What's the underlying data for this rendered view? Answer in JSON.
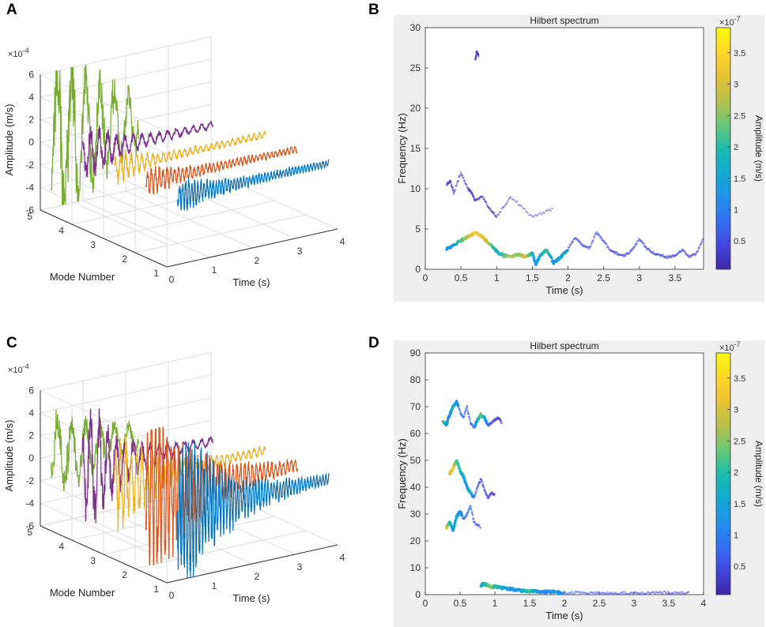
{
  "panels": [
    {
      "letter": "A",
      "kind": "modes"
    },
    {
      "letter": "B",
      "kind": "hilbert"
    },
    {
      "letter": "C",
      "kind": "modes"
    },
    {
      "letter": "D",
      "kind": "hilbert"
    }
  ],
  "chart_data": [
    {
      "type": "line",
      "panel": "A",
      "title": "",
      "xlabel": "Time (s)",
      "ylabel": "Mode Number",
      "zlabel": "Amplitude (m/s)",
      "z_exponent": "×10^-4",
      "x_ticks": [
        0,
        1,
        2,
        3,
        4
      ],
      "y_ticks": [
        1,
        2,
        3,
        4,
        5
      ],
      "z_ticks": [
        -6,
        -4,
        -2,
        0,
        2,
        4,
        6
      ],
      "xlim": [
        0,
        4
      ],
      "ylim": [
        1,
        5
      ],
      "zlim": [
        -6,
        6
      ],
      "series": [
        {
          "name": "Mode 1",
          "mode": 1,
          "color": "#0072BD",
          "peak_amplitude": 0.8,
          "decay": 1.2
        },
        {
          "name": "Mode 2",
          "mode": 2,
          "color": "#D95319",
          "peak_amplitude": 0.7,
          "decay": 1.5
        },
        {
          "name": "Mode 3",
          "mode": 3,
          "color": "#EDB120",
          "peak_amplitude": 0.9,
          "decay": 2.0
        },
        {
          "name": "Mode 4",
          "mode": 4,
          "color": "#7E2F8E",
          "peak_amplitude": 1.6,
          "decay": 1.5
        },
        {
          "name": "Mode 5",
          "mode": 5,
          "color": "#77AC30",
          "peak_amplitude": 6.0,
          "decay": 0.6
        }
      ]
    },
    {
      "type": "heatmap",
      "panel": "B",
      "title": "Hilbert spectrum",
      "xlabel": "Time (s)",
      "ylabel": "Frequency (Hz)",
      "x_ticks": [
        0,
        0.5,
        1,
        1.5,
        2,
        2.5,
        3,
        3.5
      ],
      "y_ticks": [
        0,
        5,
        10,
        15,
        20,
        25,
        30
      ],
      "xlim": [
        0,
        3.9
      ],
      "ylim": [
        0,
        30
      ],
      "colorbar": {
        "label": "Amplitude (m/s)",
        "exponent": "×10^-7",
        "ticks": [
          0.5,
          1,
          1.5,
          2,
          2.5,
          3,
          3.5
        ],
        "range": [
          0.05,
          3.9
        ]
      },
      "traces": [
        {
          "t": [
            0.3,
            0.4,
            0.5,
            0.6,
            0.7,
            0.8,
            0.9,
            1.0,
            1.1,
            1.2,
            1.3,
            1.4,
            1.5,
            1.55,
            1.6,
            1.7,
            1.8,
            1.9,
            2.0
          ],
          "f": [
            2.6,
            2.9,
            3.6,
            4.0,
            4.6,
            4.0,
            3.2,
            2.2,
            1.7,
            1.6,
            1.8,
            1.6,
            2.0,
            0.6,
            1.6,
            2.4,
            0.8,
            1.5,
            2.5
          ],
          "a": [
            1.2,
            1.4,
            2.2,
            2.8,
            3.4,
            3.2,
            2.6,
            1.6,
            2.2,
            2.8,
            2.4,
            3.0,
            1.8,
            1.2,
            1.6,
            2.2,
            1.2,
            1.6,
            1.4
          ]
        },
        {
          "t": [
            2.0,
            2.1,
            2.2,
            2.3,
            2.4,
            2.5,
            2.6,
            2.7,
            2.8,
            2.9,
            3.0,
            3.1,
            3.2,
            3.3,
            3.4,
            3.5,
            3.6,
            3.7,
            3.8,
            3.9
          ],
          "f": [
            2.5,
            4.0,
            3.0,
            2.6,
            4.6,
            3.5,
            2.3,
            1.9,
            1.7,
            2.4,
            3.8,
            2.6,
            2.0,
            1.7,
            1.5,
            1.7,
            2.4,
            1.5,
            2.0,
            3.8
          ],
          "a": [
            0.4,
            0.5,
            0.4,
            0.4,
            0.5,
            0.5,
            0.4,
            0.4,
            0.4,
            0.4,
            0.5,
            0.4,
            0.4,
            0.4,
            0.4,
            0.4,
            0.4,
            0.4,
            0.4,
            0.4
          ]
        },
        {
          "t": [
            0.3,
            0.35,
            0.4,
            0.5,
            0.6,
            0.65,
            0.7,
            0.8,
            0.9,
            1.0,
            1.2,
            1.5,
            1.8
          ],
          "f": [
            10.5,
            11,
            9.5,
            12,
            10,
            9.5,
            8.5,
            9,
            7.5,
            6.5,
            9,
            6.5,
            7.5
          ],
          "a": [
            0.2,
            0.2,
            0.2,
            0.2,
            0.2,
            0.2,
            0.2,
            0.2,
            0.2,
            0.2,
            0.2,
            0.2,
            0.2
          ]
        },
        {
          "t": [
            0.7,
            0.72,
            0.75
          ],
          "f": [
            26,
            27,
            26.5
          ],
          "a": [
            0.2,
            0.2,
            0.2
          ]
        }
      ]
    },
    {
      "type": "line",
      "panel": "C",
      "title": "",
      "xlabel": "Time (s)",
      "ylabel": "Mode Number",
      "zlabel": "Amplitude (m/s)",
      "z_exponent": "×10^-4",
      "x_ticks": [
        0,
        1,
        2,
        3,
        4
      ],
      "y_ticks": [
        1,
        2,
        3,
        4,
        5
      ],
      "z_ticks": [
        -6,
        -4,
        -2,
        0,
        2,
        4,
        6
      ],
      "xlim": [
        0,
        4
      ],
      "ylim": [
        1,
        5
      ],
      "zlim": [
        -6,
        6
      ],
      "series": [
        {
          "name": "Mode 1",
          "mode": 1,
          "color": "#0072BD",
          "peak_amplitude": 5.2,
          "decay": 1.1
        },
        {
          "name": "Mode 2",
          "mode": 2,
          "color": "#D95319",
          "peak_amplitude": 5.6,
          "decay": 1.0
        },
        {
          "name": "Mode 3",
          "mode": 3,
          "color": "#EDB120",
          "peak_amplitude": 3.2,
          "decay": 1.3
        },
        {
          "name": "Mode 4",
          "mode": 4,
          "color": "#7E2F8E",
          "peak_amplitude": 4.0,
          "decay": 1.4
        },
        {
          "name": "Mode 5",
          "mode": 5,
          "color": "#77AC30",
          "peak_amplitude": 2.8,
          "decay": 0.7
        }
      ]
    },
    {
      "type": "heatmap",
      "panel": "D",
      "title": "Hilbert spectrum",
      "xlabel": "Time (s)",
      "ylabel": "Frequency (Hz)",
      "x_ticks": [
        0,
        0.5,
        1,
        1.5,
        2,
        2.5,
        3,
        3.5,
        4
      ],
      "y_ticks": [
        0,
        10,
        20,
        30,
        40,
        50,
        60,
        70,
        80,
        90
      ],
      "xlim": [
        0,
        4
      ],
      "ylim": [
        0,
        90
      ],
      "colorbar": {
        "label": "Amplitude (m/s)",
        "exponent": "×10^-7",
        "ticks": [
          0.5,
          1,
          1.5,
          2,
          2.5,
          3,
          3.5
        ],
        "range": [
          0.05,
          3.9
        ]
      },
      "traces": [
        {
          "t": [
            0.25,
            0.3,
            0.35,
            0.4,
            0.45,
            0.5,
            0.55,
            0.6,
            0.65,
            0.7,
            0.75,
            0.8,
            0.85,
            0.9,
            0.95,
            1.0,
            1.05,
            1.1
          ],
          "f": [
            65,
            63,
            67,
            70,
            72,
            68,
            66,
            70,
            64,
            62,
            65,
            67,
            66,
            63,
            64,
            65,
            66,
            64
          ],
          "a": [
            2.6,
            1.4,
            1.0,
            1.8,
            1.2,
            0.8,
            0.9,
            0.7,
            0.6,
            0.8,
            1.6,
            2.4,
            1.8,
            0.7,
            0.5,
            0.4,
            0.3,
            0.3
          ]
        },
        {
          "t": [
            0.35,
            0.4,
            0.45,
            0.5,
            0.55,
            0.6,
            0.65,
            0.7,
            0.75,
            0.8,
            0.85,
            0.9,
            0.95,
            1.0
          ],
          "f": [
            45,
            47,
            50,
            46,
            44,
            40,
            38,
            36,
            40,
            43,
            39,
            36,
            38,
            37
          ],
          "a": [
            2.8,
            3.3,
            2.2,
            2.0,
            1.6,
            1.2,
            2.0,
            0.8,
            0.6,
            0.5,
            0.5,
            0.4,
            0.4,
            0.3
          ]
        },
        {
          "t": [
            0.3,
            0.35,
            0.4,
            0.45,
            0.5,
            0.55,
            0.6,
            0.65,
            0.7,
            0.8
          ],
          "f": [
            25,
            27,
            24,
            29,
            31,
            28,
            30,
            33,
            27,
            25
          ],
          "a": [
            3.2,
            2.0,
            1.4,
            1.6,
            1.2,
            0.9,
            0.7,
            1.0,
            0.5,
            0.4
          ]
        },
        {
          "t": [
            0.8,
            0.85,
            0.9,
            0.95,
            1.0,
            1.1,
            1.2,
            1.3,
            1.4,
            1.5,
            1.6,
            1.7,
            1.8,
            1.9,
            2.0,
            2.2,
            2.4,
            2.6,
            2.8,
            3.0,
            3.2,
            3.4,
            3.6,
            3.8
          ],
          "f": [
            3.5,
            4,
            3.5,
            2.8,
            3,
            2.5,
            2.2,
            1.8,
            1.5,
            1.3,
            1.2,
            1.0,
            1.1,
            0.9,
            0.8,
            0.8,
            0.7,
            0.7,
            0.6,
            0.6,
            0.6,
            0.8,
            0.7,
            0.6
          ],
          "a": [
            1.4,
            1.8,
            2.2,
            2.6,
            2.0,
            1.6,
            1.4,
            1.2,
            1.6,
            2.2,
            1.4,
            1.0,
            1.2,
            1.4,
            0.8,
            0.7,
            0.6,
            0.5,
            0.4,
            0.4,
            0.4,
            0.4,
            0.4,
            0.3
          ]
        }
      ]
    }
  ]
}
